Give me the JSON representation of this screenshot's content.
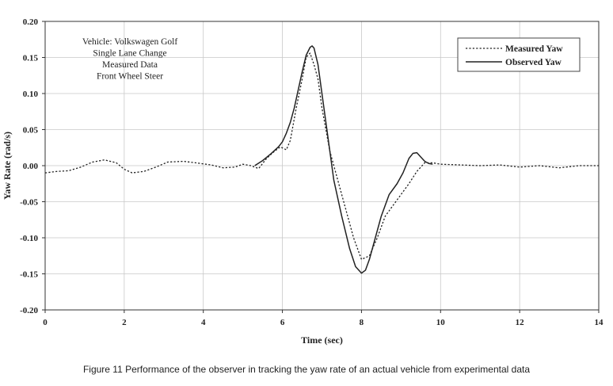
{
  "chart_data": {
    "type": "line",
    "title": "",
    "xlabel": "Time (sec)",
    "ylabel": "Yaw Rate (rad/s)",
    "xlim": [
      0,
      14
    ],
    "ylim": [
      -0.2,
      0.2
    ],
    "x_ticks": [
      0,
      2,
      4,
      6,
      8,
      10,
      12,
      14
    ],
    "y_ticks": [
      0.2,
      0.15,
      0.1,
      0.05,
      0.0,
      -0.05,
      -0.1,
      -0.15,
      -0.2
    ],
    "x_tick_labels": [
      "0",
      "2",
      "4",
      "6",
      "8",
      "10",
      "12",
      "14"
    ],
    "y_tick_labels": [
      "0.20",
      "0.15",
      "0.10",
      "0.05",
      "0.00",
      "-0.05",
      "-0.10",
      "-0.15",
      "-0.20"
    ],
    "grid": true,
    "legend_position": "top-right",
    "annotation_lines": [
      "Vehicle: Volkswagen Golf",
      "Single Lane Change",
      "Measured Data",
      "Front Wheel Steer"
    ],
    "series": [
      {
        "name": "Measured Yaw",
        "style": "dotted",
        "color": "#222222",
        "x": [
          0,
          0.3,
          0.6,
          0.9,
          1.2,
          1.5,
          1.8,
          2.0,
          2.2,
          2.5,
          2.8,
          3.1,
          3.5,
          3.8,
          4.2,
          4.5,
          4.8,
          5.0,
          5.2,
          5.4,
          5.6,
          5.8,
          5.95,
          6.1,
          6.2,
          6.35,
          6.5,
          6.6,
          6.7,
          6.8,
          6.9,
          7.0,
          7.2,
          7.4,
          7.6,
          7.8,
          8.0,
          8.2,
          8.4,
          8.6,
          8.8,
          9.0,
          9.2,
          9.4,
          9.6,
          9.8,
          10.0,
          10.5,
          11.0,
          11.5,
          12.0,
          12.5,
          13.0,
          13.5,
          14.0
        ],
        "y": [
          -0.01,
          -0.008,
          -0.007,
          -0.002,
          0.005,
          0.008,
          0.004,
          -0.005,
          -0.01,
          -0.008,
          -0.002,
          0.005,
          0.006,
          0.004,
          0.001,
          -0.003,
          -0.002,
          0.002,
          0.0,
          -0.004,
          0.01,
          0.02,
          0.026,
          0.022,
          0.035,
          0.08,
          0.12,
          0.15,
          0.156,
          0.14,
          0.12,
          0.08,
          0.02,
          -0.02,
          -0.06,
          -0.1,
          -0.13,
          -0.125,
          -0.1,
          -0.07,
          -0.055,
          -0.04,
          -0.025,
          -0.008,
          0.004,
          0.004,
          0.002,
          0.001,
          0.0,
          0.001,
          -0.002,
          0.0,
          -0.003,
          0.0,
          0.0
        ]
      },
      {
        "name": "Observed Yaw",
        "style": "solid",
        "color": "#222222",
        "x": [
          5.3,
          5.5,
          5.7,
          5.9,
          6.0,
          6.1,
          6.2,
          6.3,
          6.4,
          6.5,
          6.6,
          6.7,
          6.75,
          6.8,
          6.9,
          7.0,
          7.1,
          7.2,
          7.3,
          7.5,
          7.7,
          7.85,
          8.0,
          8.1,
          8.2,
          8.35,
          8.5,
          8.7,
          8.9,
          9.05,
          9.2,
          9.3,
          9.4,
          9.5,
          9.6,
          9.7,
          9.8
        ],
        "y": [
          0.0,
          0.007,
          0.016,
          0.026,
          0.033,
          0.045,
          0.06,
          0.08,
          0.105,
          0.13,
          0.153,
          0.164,
          0.166,
          0.163,
          0.14,
          0.1,
          0.06,
          0.02,
          -0.02,
          -0.07,
          -0.115,
          -0.14,
          -0.149,
          -0.145,
          -0.13,
          -0.1,
          -0.07,
          -0.04,
          -0.025,
          -0.01,
          0.01,
          0.017,
          0.018,
          0.012,
          0.006,
          0.003,
          0.002
        ]
      }
    ]
  },
  "caption": "Figure 11  Performance of the observer in tracking the yaw rate of an actual vehicle from experimental data"
}
